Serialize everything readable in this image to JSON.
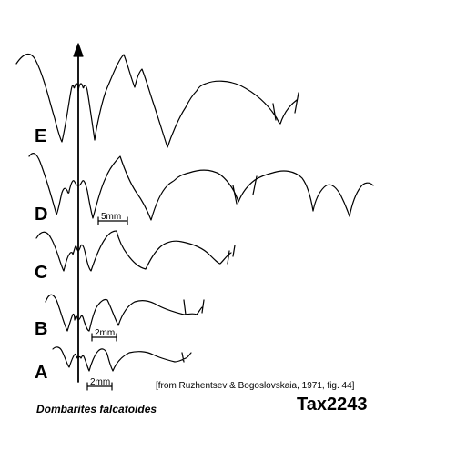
{
  "stages": [
    {
      "label": "E"
    },
    {
      "label": "D"
    },
    {
      "label": "C"
    },
    {
      "label": "B"
    },
    {
      "label": "A"
    }
  ],
  "scale_bars": [
    {
      "label": "5mm"
    },
    {
      "label": "2mm"
    },
    {
      "label": "2mm"
    }
  ],
  "source": "[from Ruzhentsev & Bogoslovskaia, 1971, fig. 44]",
  "species": "Dombarites falcatoides",
  "tax_id": "Tax2243"
}
